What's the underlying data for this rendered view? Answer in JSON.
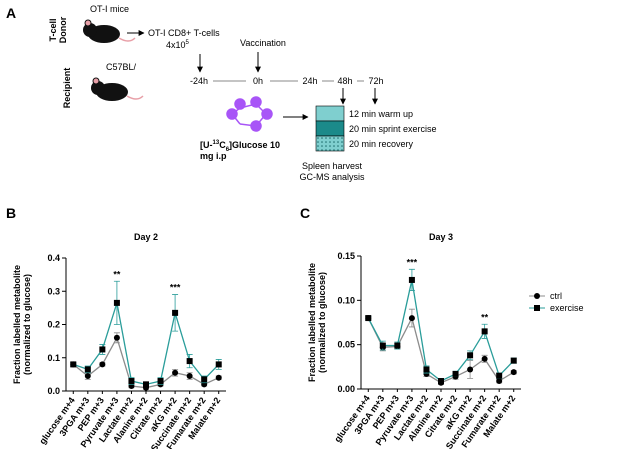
{
  "diagram": {
    "label": "A",
    "donor": [
      "T-cell",
      "Donor"
    ],
    "donor_mouse": "OT-I mice",
    "cells": "OT-I CD8+ T-cells",
    "dose": [
      "4x10",
      "5"
    ],
    "recipient": "Recipient",
    "recipient_mouse": "C57BL/",
    "vaccination": "Vaccination",
    "timeline": [
      "-24h",
      "0h",
      "24h",
      "48h",
      "72h"
    ],
    "tracer": [
      "[U-",
      "13",
      "C",
      "6",
      "]Glucose 10",
      "mg i.p"
    ],
    "steps": [
      "12 min warm up",
      "20 min sprint exercise",
      "20 min recovery"
    ],
    "harvest": [
      "Spleen harvest",
      "GC-MS analysis"
    ]
  },
  "chart_data": [
    {
      "type": "line",
      "panel": "B",
      "title": "Day 2",
      "y_label": [
        "Fraction labelled metabolite",
        "(normalized to glucose)"
      ],
      "categories": [
        "glucose m+4",
        "3PGA m+3",
        "PEP m+3",
        "Pyruvate m+3",
        "Lactate m+2",
        "Alanine m+2",
        "Citrate m+2",
        "aKG m+2",
        "Succinate m+2",
        "Fumarate m+2",
        "Malate m+2"
      ],
      "series": [
        {
          "name": "ctrl",
          "color": "#8c8c8c",
          "marker": "circle",
          "values": [
            0.08,
            0.045,
            0.08,
            0.16,
            0.015,
            0.01,
            0.02,
            0.055,
            0.045,
            0.02,
            0.04
          ],
          "errors": [
            0.005,
            0.01,
            0.005,
            0.015,
            0.005,
            0.005,
            0.005,
            0.01,
            0.01,
            0.005,
            0.005
          ]
        },
        {
          "name": "exercise",
          "color": "#2a9d9a",
          "marker": "square",
          "values": [
            0.08,
            0.065,
            0.125,
            0.265,
            0.03,
            0.02,
            0.03,
            0.235,
            0.09,
            0.035,
            0.08
          ],
          "errors": [
            0.005,
            0.01,
            0.015,
            0.065,
            0.01,
            0.005,
            0.01,
            0.055,
            0.02,
            0.01,
            0.015
          ]
        }
      ],
      "annotations": [
        {
          "text": "**",
          "category": "Pyruvate m+3"
        },
        {
          "text": "***",
          "category": "aKG m+2"
        }
      ],
      "ylim": [
        0,
        0.4
      ],
      "yticks": [
        {
          "value": 0,
          "label": "0.0"
        },
        0.1,
        0.2,
        0.3,
        0.4
      ]
    },
    {
      "type": "line",
      "panel": "C",
      "title": "Day 3",
      "y_label": [
        "Fraction labelled metabolite",
        "(normalized to glucose)"
      ],
      "categories": [
        "glucose m+4",
        "3PGA m+3",
        "PEP m+3",
        "Pyruvate m+3",
        "Lactate m+2",
        "Alanine m+2",
        "Citrate m+2",
        "aKG m+2",
        "Succinate m+2",
        "Fumarate m+2",
        "Malate m+2"
      ],
      "series": [
        {
          "name": "ctrl",
          "color": "#8c8c8c",
          "marker": "circle",
          "values": [
            0.08,
            0.047,
            0.048,
            0.08,
            0.017,
            0.007,
            0.014,
            0.022,
            0.034,
            0.009,
            0.019
          ],
          "errors": [
            0.002,
            0.004,
            0.003,
            0.01,
            0.003,
            0.002,
            0.003,
            0.01,
            0.004,
            0.002,
            0.002
          ]
        },
        {
          "name": "exercise",
          "color": "#2a9d9a",
          "marker": "square",
          "values": [
            0.08,
            0.049,
            0.049,
            0.123,
            0.022,
            0.009,
            0.017,
            0.038,
            0.065,
            0.015,
            0.032
          ],
          "errors": [
            0.002,
            0.005,
            0.004,
            0.012,
            0.004,
            0.002,
            0.003,
            0.005,
            0.008,
            0.003,
            0.003
          ]
        }
      ],
      "annotations": [
        {
          "text": "***",
          "category": "Pyruvate m+3"
        },
        {
          "text": "**",
          "category": "Succinate m+2"
        }
      ],
      "ylim": [
        0,
        0.15
      ],
      "yticks": [
        {
          "value": 0,
          "label": "0.00"
        },
        {
          "value": 0.05,
          "label": "0.05"
        },
        {
          "value": 0.1,
          "label": "0.10"
        },
        {
          "value": 0.15,
          "label": "0.15"
        }
      ],
      "legend": "right"
    }
  ]
}
